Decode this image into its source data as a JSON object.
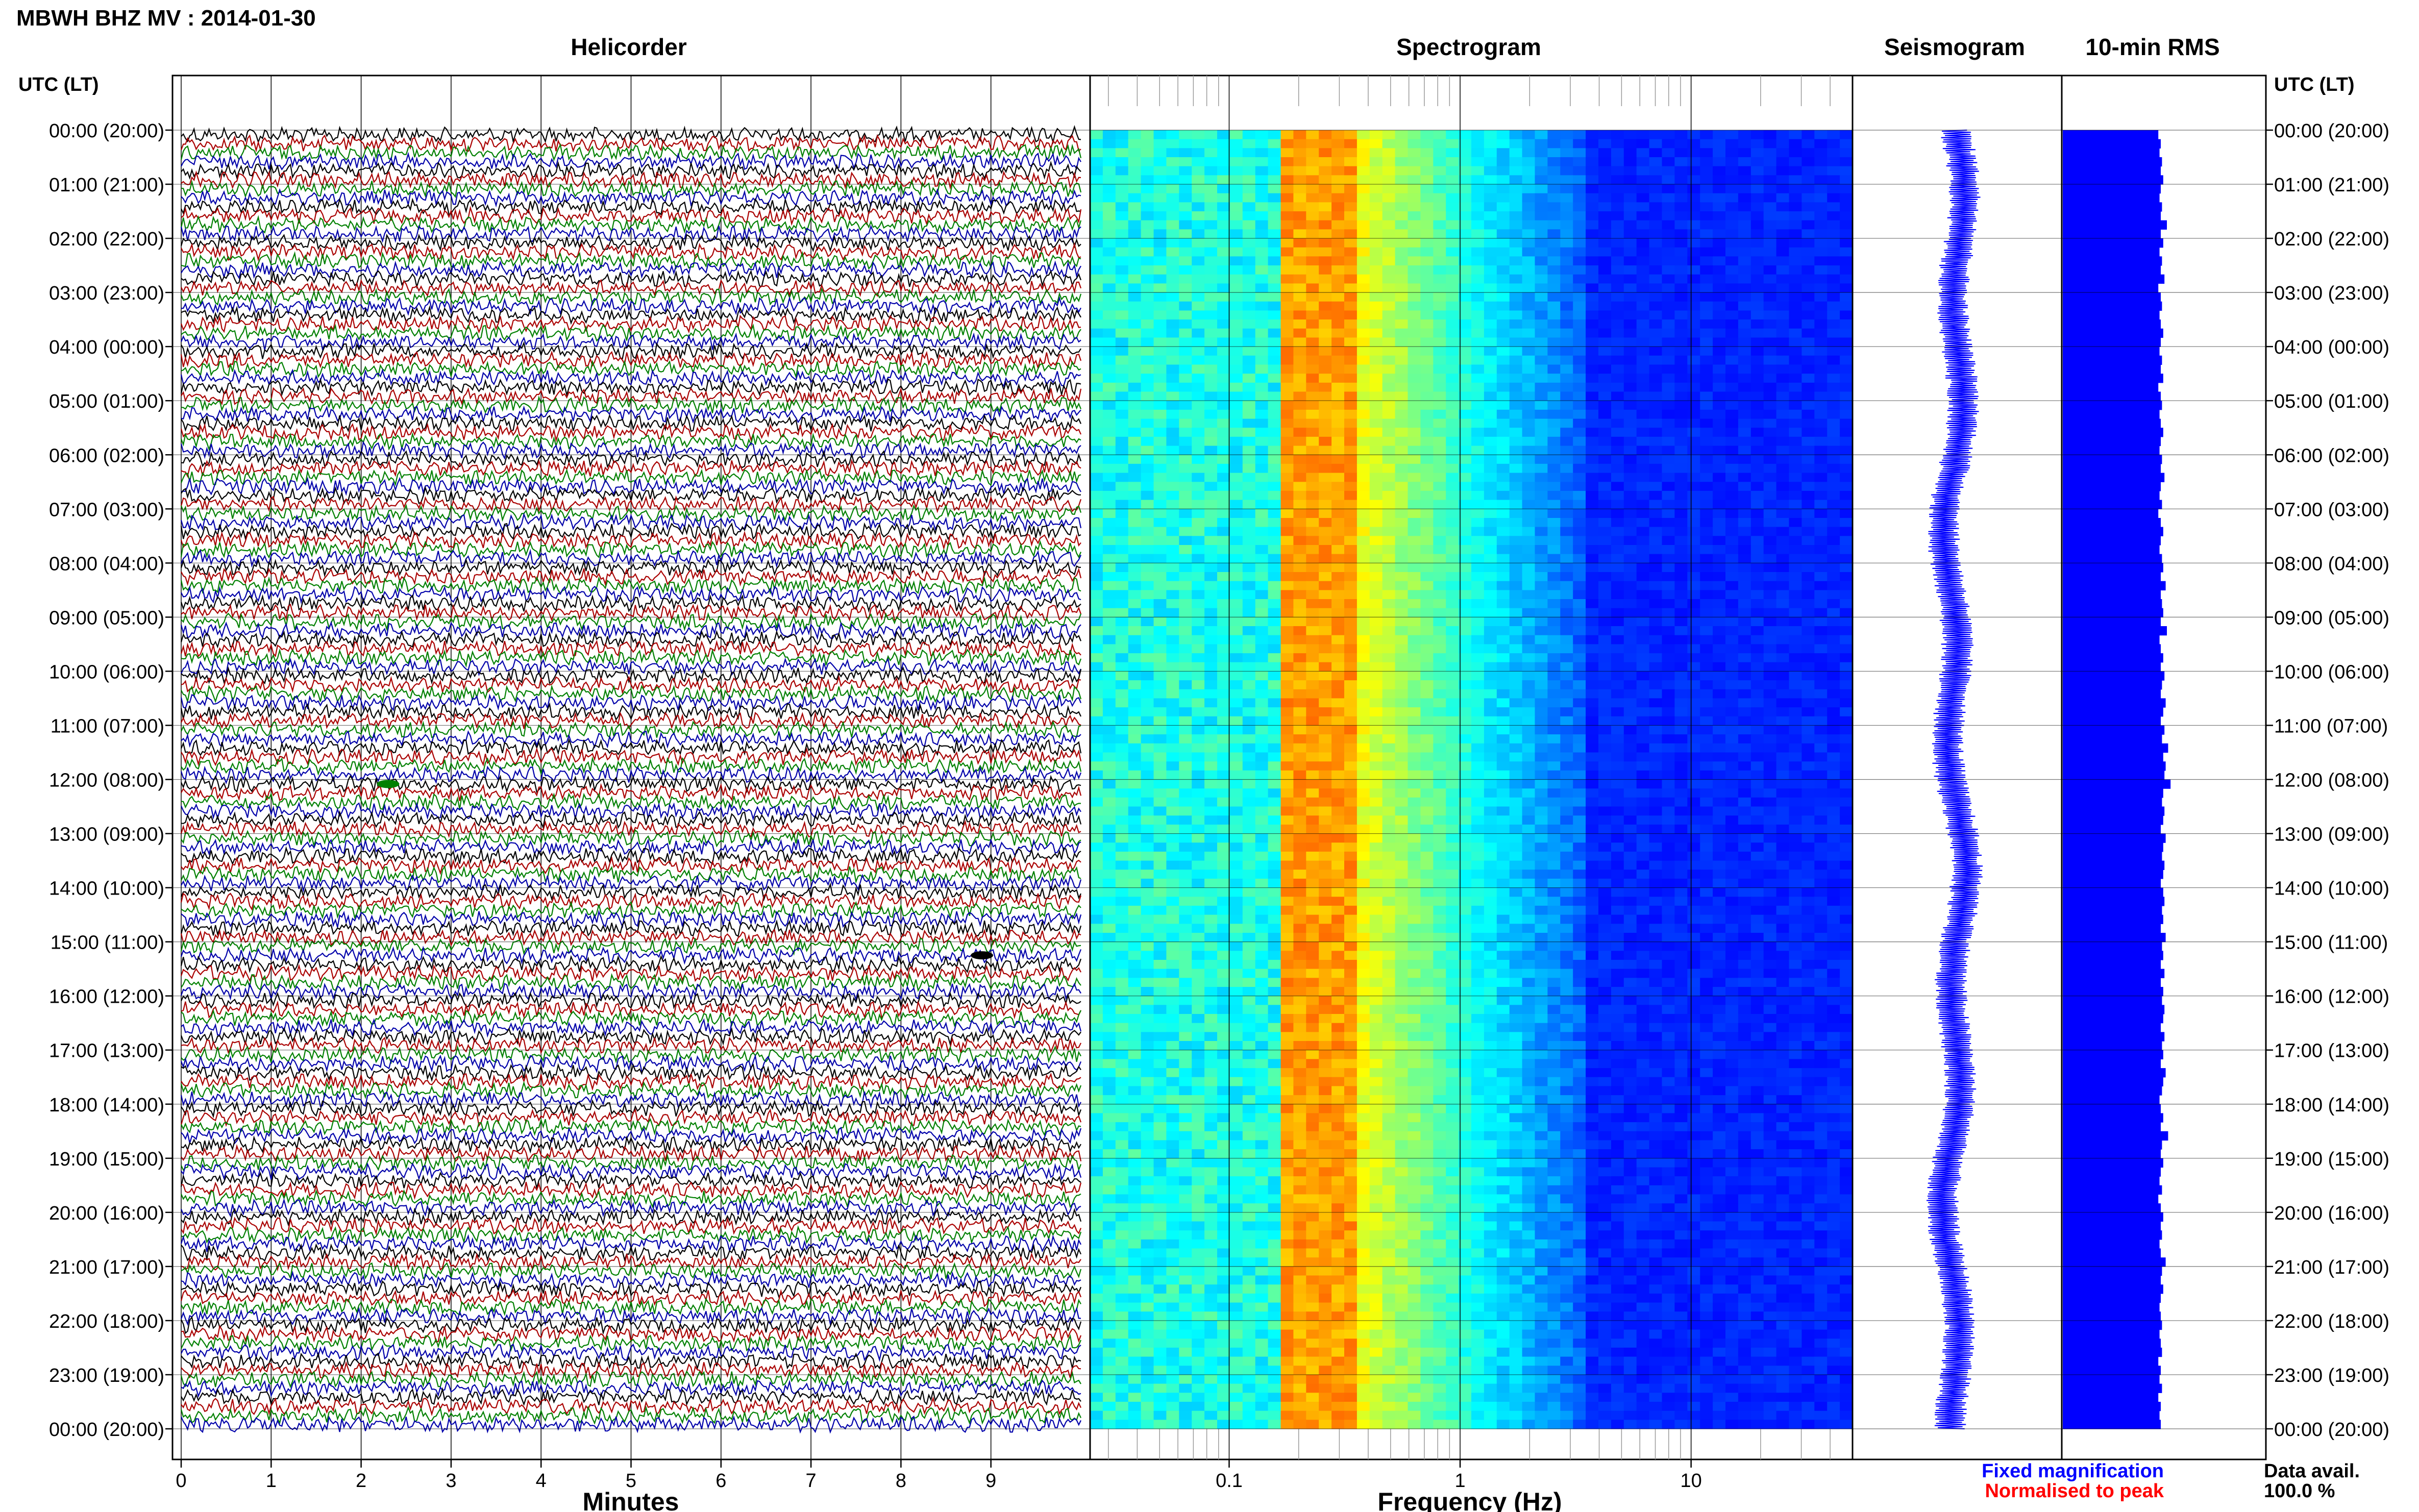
{
  "header": {
    "station_title": "MBWH BHZ MV : 2014-01-30",
    "time_label_left": "UTC (LT)",
    "time_label_right": "UTC (LT)"
  },
  "panels": {
    "helicorder_title": "Helicorder",
    "spectrogram_title": "Spectrogram",
    "seismogram_title": "Seismogram",
    "rms_title": "10-min RMS"
  },
  "time_labels": [
    "00:00 (20:00)",
    "01:00 (21:00)",
    "02:00 (22:00)",
    "03:00 (23:00)",
    "04:00 (00:00)",
    "05:00 (01:00)",
    "06:00 (02:00)",
    "07:00 (03:00)",
    "08:00 (04:00)",
    "09:00 (05:00)",
    "10:00 (06:00)",
    "11:00 (07:00)",
    "12:00 (08:00)",
    "13:00 (09:00)",
    "14:00 (10:00)",
    "15:00 (11:00)",
    "16:00 (12:00)",
    "17:00 (13:00)",
    "18:00 (14:00)",
    "19:00 (15:00)",
    "20:00 (16:00)",
    "21:00 (17:00)",
    "22:00 (18:00)",
    "23:00 (19:00)",
    "00:00 (20:00)"
  ],
  "legend": {
    "fixed": "Fixed magnification",
    "normalised": "Normalised to peak",
    "fixed_color": "#0000ff",
    "normalised_color": "#ff0000",
    "data_avail_label": "Data avail.",
    "data_avail_value": "100.0 %"
  },
  "colors": {
    "trace_cycle": [
      "#000000",
      "#aa0000",
      "#008000",
      "#0000aa"
    ],
    "seismogram": "#0000ff",
    "rms": "#0000ff"
  },
  "chart_data": [
    {
      "type": "line",
      "name": "helicorder",
      "title": "Helicorder",
      "xlabel": "Minutes",
      "xticks": [
        "0",
        "1",
        "2",
        "3",
        "4",
        "5",
        "6",
        "7",
        "8",
        "9"
      ],
      "xlim": [
        0,
        10
      ],
      "rows_per_hour": 6,
      "hours": 24,
      "note_events": [
        {
          "row": 72,
          "minute": 2.3,
          "color": "#008000"
        },
        {
          "row": 91,
          "minute": 8.9,
          "color": "#000000"
        }
      ]
    },
    {
      "type": "heatmap",
      "name": "spectrogram",
      "title": "Spectrogram",
      "xlabel": "Frequency (Hz)",
      "xscale": "log",
      "xlim": [
        0.025,
        50
      ],
      "xticks": [
        "0.1",
        "1",
        "10"
      ],
      "colormap": "jet",
      "rows": 144
    },
    {
      "type": "line",
      "name": "seismogram",
      "title": "Seismogram",
      "hours": 24
    },
    {
      "type": "bar",
      "name": "rms",
      "title": "10-min RMS",
      "values": [
        0.78,
        0.8,
        0.79,
        0.81,
        0.8,
        0.82,
        0.8,
        0.79,
        0.81,
        0.8,
        0.85,
        0.8,
        0.82,
        0.79,
        0.81,
        0.8,
        0.83,
        0.78,
        0.8,
        0.81,
        0.79,
        0.8,
        0.82,
        0.8,
        0.79,
        0.81,
        0.8,
        0.82,
        0.78,
        0.8,
        0.81,
        0.79,
        0.8,
        0.82,
        0.8,
        0.79,
        0.81,
        0.8,
        0.83,
        0.8,
        0.79,
        0.81,
        0.78,
        0.8,
        0.82,
        0.8,
        0.79,
        0.81,
        0.82,
        0.8,
        0.84,
        0.8,
        0.81,
        0.82,
        0.8,
        0.85,
        0.79,
        0.8,
        0.82,
        0.8,
        0.83,
        0.81,
        0.8,
        0.84,
        0.82,
        0.8,
        0.83,
        0.81,
        0.86,
        0.82,
        0.84,
        0.83,
        0.88,
        0.82,
        0.81,
        0.83,
        0.82,
        0.8,
        0.84,
        0.82,
        0.81,
        0.83,
        0.82,
        0.8,
        0.82,
        0.83,
        0.81,
        0.82,
        0.8,
        0.84,
        0.81,
        0.82,
        0.8,
        0.83,
        0.8,
        0.82,
        0.81,
        0.83,
        0.82,
        0.8,
        0.83,
        0.81,
        0.82,
        0.8,
        0.84,
        0.82,
        0.81,
        0.79,
        0.8,
        0.82,
        0.8,
        0.86,
        0.81,
        0.8,
        0.82,
        0.8,
        0.79,
        0.81,
        0.78,
        0.8,
        0.82,
        0.8,
        0.81,
        0.79,
        0.8,
        0.84,
        0.81,
        0.8,
        0.82,
        0.8,
        0.79,
        0.8,
        0.81,
        0.79,
        0.8,
        0.81,
        0.78,
        0.8,
        0.79,
        0.81,
        0.78,
        0.8,
        0.79,
        0.8
      ]
    }
  ]
}
